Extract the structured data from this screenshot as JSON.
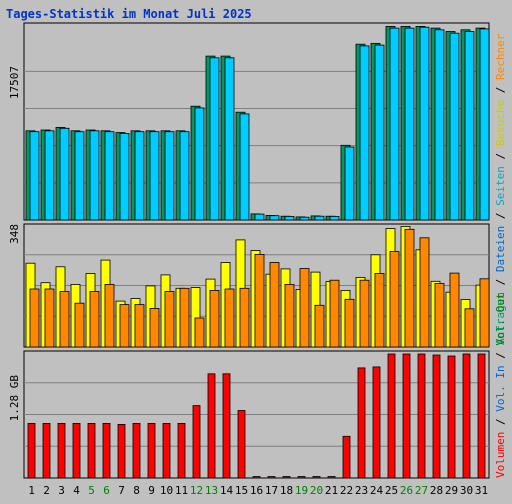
{
  "title": "Tages-Statistik im Monat Juli 2025",
  "colors": {
    "anfragen": "#009966",
    "dateien": "#00ccff",
    "seiten": "#00ccff",
    "besuche": "#ffff00",
    "rechner": "#ff8800",
    "volumen": "#ff0000",
    "weekday_label": "#000000",
    "weekend_label": "#008000",
    "grid": "#808080",
    "panel_bg": "#c0c0c0"
  },
  "chart_data": [
    {
      "type": "bar",
      "name": "requests-files",
      "y_tick_label": "17507",
      "y_tick_value": 17507,
      "ylim": [
        0,
        23200
      ],
      "grid_lines": 4,
      "series": [
        {
          "name": "Anfragen",
          "color": "#009966",
          "values": [
            10500,
            10600,
            10900,
            10500,
            10600,
            10500,
            10300,
            10500,
            10500,
            10500,
            10500,
            13400,
            19300,
            19300,
            12700,
            720,
            540,
            450,
            360,
            480,
            450,
            8800,
            20700,
            20800,
            22800,
            22800,
            22800,
            22600,
            22200,
            22400,
            22600
          ]
        },
        {
          "name": "Dateien",
          "color": "#00ccff",
          "values": [
            10400,
            10500,
            10800,
            10400,
            10500,
            10400,
            10200,
            10400,
            10400,
            10400,
            10400,
            13200,
            19100,
            19100,
            12500,
            690,
            510,
            420,
            330,
            450,
            420,
            8600,
            20500,
            20600,
            22600,
            22600,
            22700,
            22400,
            22000,
            22200,
            22500
          ]
        }
      ]
    },
    {
      "type": "bar",
      "name": "visits-hosts",
      "y_tick_label": "348",
      "y_tick_value": 348,
      "ylim": [
        0,
        348
      ],
      "grid_lines": 4,
      "series": [
        {
          "name": "Besuche",
          "color": "#ffff00",
          "values": [
            237,
            182,
            227,
            177,
            208,
            246,
            130,
            137,
            173,
            204,
            166,
            168,
            192,
            239,
            303,
            273,
            206,
            221,
            163,
            212,
            185,
            160,
            197,
            261,
            335,
            341,
            275,
            186,
            155,
            134,
            175
          ]
        },
        {
          "name": "Rechner",
          "color": "#ff8800",
          "values": [
            164,
            164,
            157,
            124,
            157,
            177,
            120,
            120,
            109,
            157,
            166,
            82,
            160,
            164,
            166,
            262,
            239,
            177,
            222,
            118,
            189,
            135,
            189,
            208,
            270,
            333,
            309,
            180,
            209,
            108,
            193
          ]
        }
      ]
    },
    {
      "type": "bar",
      "name": "volume",
      "y_tick_label": "1.28 GB",
      "y_tick_value": 1.28,
      "ylim": [
        0,
        1.28
      ],
      "grid_lines": 4,
      "series": [
        {
          "name": "Volumen",
          "color": "#ff0000",
          "values": [
            0.55,
            0.55,
            0.55,
            0.55,
            0.55,
            0.55,
            0.54,
            0.55,
            0.55,
            0.55,
            0.55,
            0.73,
            1.05,
            1.05,
            0.68,
            0.015,
            0.015,
            0.015,
            0.015,
            0.015,
            0.015,
            0.42,
            1.11,
            1.12,
            1.25,
            1.25,
            1.25,
            1.24,
            1.23,
            1.25,
            1.25
          ]
        }
      ]
    }
  ],
  "x_labels": [
    "1",
    "2",
    "3",
    "4",
    "5",
    "6",
    "7",
    "8",
    "9",
    "10",
    "11",
    "12",
    "13",
    "14",
    "15",
    "16",
    "17",
    "18",
    "19",
    "20",
    "21",
    "22",
    "23",
    "24",
    "25",
    "26",
    "27",
    "28",
    "29",
    "30",
    "31"
  ],
  "weekend_days": [
    "5",
    "6",
    "12",
    "13",
    "19",
    "20",
    "26",
    "27"
  ],
  "side_legend_top": [
    {
      "text": "Anfragen",
      "color": "#009966"
    },
    {
      "text": " / ",
      "color": "#000000"
    },
    {
      "text": "Dateien",
      "color": "#0066cc"
    },
    {
      "text": " / ",
      "color": "#000000"
    },
    {
      "text": "Seiten",
      "color": "#00aacc"
    },
    {
      "text": " / ",
      "color": "#000000"
    },
    {
      "text": "Besuche",
      "color": "#cccc00"
    },
    {
      "text": " / ",
      "color": "#000000"
    },
    {
      "text": "Rechner",
      "color": "#ff8800"
    }
  ],
  "side_legend_bottom": [
    {
      "text": "Volumen",
      "color": "#ff0000"
    },
    {
      "text": " / ",
      "color": "#000000"
    },
    {
      "text": "Vol. In",
      "color": "#0066cc"
    },
    {
      "text": " / ",
      "color": "#000000"
    },
    {
      "text": "Vol. Out",
      "color": "#008000"
    }
  ]
}
